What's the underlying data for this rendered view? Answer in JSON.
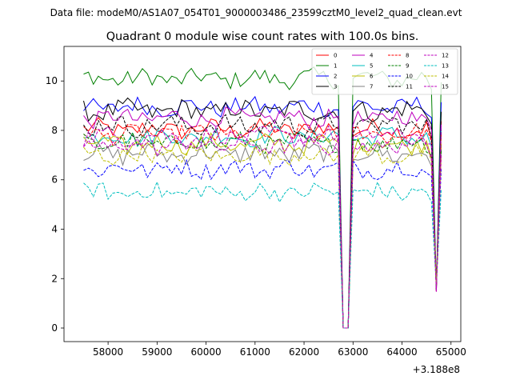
{
  "chart_data": {
    "type": "line",
    "suptitle": "Data file: modeM0/AS1A07_054T01_9000003486_23599cztM0_level2_quad_clean.evt",
    "title": "Quadrant 0 module wise count rates with 100.0s bins.",
    "xlabel": "",
    "ylabel": "",
    "x_offset_label": "+3.188e8",
    "xlim": [
      57100,
      65200
    ],
    "ylim": [
      -0.55,
      11.4
    ],
    "x_ticks": [
      58000,
      59000,
      60000,
      61000,
      62000,
      63000,
      64000,
      65000
    ],
    "x_tick_labels": [
      "58000",
      "59000",
      "60000",
      "61000",
      "62000",
      "63000",
      "64000",
      "65000"
    ],
    "y_ticks": [
      0,
      2,
      4,
      6,
      8,
      10
    ],
    "y_tick_labels": [
      "0",
      "2",
      "4",
      "6",
      "8",
      "10"
    ],
    "grid": false,
    "legend_position": "top-right",
    "x_start": 57500,
    "x_step": 100,
    "gap_range": [
      62800,
      62900
    ],
    "gap_value": 0.0,
    "dip_index": 72,
    "dip_value": 1.6,
    "series": [
      {
        "name": "0",
        "color": "#ff0000",
        "dash": "solid",
        "mean": 8.05,
        "amp": 0.35
      },
      {
        "name": "1",
        "color": "#008000",
        "dash": "solid",
        "mean": 10.1,
        "amp": 0.35
      },
      {
        "name": "2",
        "color": "#0000ff",
        "dash": "solid",
        "mean": 8.95,
        "amp": 0.35
      },
      {
        "name": "3",
        "color": "#000000",
        "dash": "solid",
        "mean": 8.8,
        "amp": 0.4
      },
      {
        "name": "4",
        "color": "#bf00bf",
        "dash": "solid",
        "mean": 8.5,
        "amp": 0.35
      },
      {
        "name": "5",
        "color": "#00bfbf",
        "dash": "solid",
        "mean": 7.75,
        "amp": 0.35
      },
      {
        "name": "6",
        "color": "#bfbf00",
        "dash": "solid",
        "mean": 7.45,
        "amp": 0.35
      },
      {
        "name": "7",
        "color": "#808080",
        "dash": "solid",
        "mean": 7.05,
        "amp": 0.4
      },
      {
        "name": "8",
        "color": "#ff0000",
        "dash": "dashed",
        "mean": 7.85,
        "amp": 0.35
      },
      {
        "name": "9",
        "color": "#008000",
        "dash": "dashed",
        "mean": 7.5,
        "amp": 0.35
      },
      {
        "name": "10",
        "color": "#0000ff",
        "dash": "dashed",
        "mean": 6.45,
        "amp": 0.35
      },
      {
        "name": "11",
        "color": "#000000",
        "dash": "dashed",
        "mean": 8.2,
        "amp": 0.4
      },
      {
        "name": "12",
        "color": "#bf00bf",
        "dash": "dashed",
        "mean": 7.75,
        "amp": 0.35
      },
      {
        "name": "13",
        "color": "#00bfbf",
        "dash": "dashed",
        "mean": 5.5,
        "amp": 0.35
      },
      {
        "name": "14",
        "color": "#bfbf00",
        "dash": "dashed",
        "mean": 7.0,
        "amp": 0.35
      },
      {
        "name": "15",
        "color": "#bf00bf",
        "dash": "dashed",
        "mean": 7.4,
        "amp": 0.35
      }
    ]
  }
}
